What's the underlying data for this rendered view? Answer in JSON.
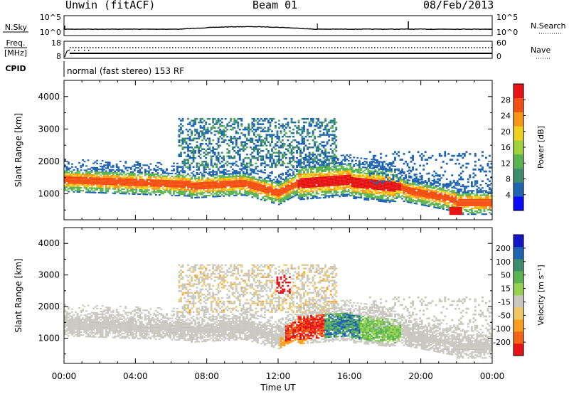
{
  "header": {
    "station": "Unwin (fitACF)",
    "beam": "Beam 01",
    "date": "08/Feb/2013"
  },
  "top_panel": {
    "left_label": "N.Sky",
    "right_label": "N.Search",
    "left_ticks": [
      "10^5",
      "10^0"
    ],
    "right_ticks": [
      "10^5",
      "10^0"
    ]
  },
  "freq_panel": {
    "left_label_1": "Freq.",
    "left_label_2": "[MHz]",
    "left_ticks": [
      "18",
      "8"
    ],
    "right_ticks": [
      "60",
      "0"
    ],
    "right_label": "Nave"
  },
  "cpid": {
    "label": "CPID",
    "text": "normal (fast stereo) 153 RF"
  },
  "chart_data": [
    {
      "type": "heatmap",
      "name": "power",
      "xlabel": "",
      "ylabel": "Slant Range [km]",
      "xlim_hours": [
        0,
        24
      ],
      "ylim_km": [
        200,
        4500
      ],
      "y_ticks": [
        "1000",
        "2000",
        "3000",
        "4000"
      ],
      "colorbar_label": "Power [dB]",
      "colorbar_ticks": [
        "28",
        "24",
        "20",
        "16",
        "12",
        "8",
        "4"
      ],
      "colorbar_range": [
        0,
        30
      ]
    },
    {
      "type": "heatmap",
      "name": "velocity",
      "xlabel": "Time UT",
      "ylabel": "Slant Range [km]",
      "xlim_hours": [
        0,
        24
      ],
      "ylim_km": [
        200,
        4500
      ],
      "x_ticks": [
        "00:00",
        "04:00",
        "08:00",
        "12:00",
        "16:00",
        "20:00",
        "00:00"
      ],
      "y_ticks": [
        "1000",
        "2000",
        "3000",
        "4000"
      ],
      "colorbar_label": "Velocity [m s⁻¹]",
      "colorbar_ticks": [
        "200",
        "100",
        "50",
        "15",
        "-15",
        "-50",
        "-100",
        "-200"
      ],
      "colorbar_range": [
        -250,
        250
      ]
    }
  ],
  "colors": {
    "power_scale": [
      "#0a0aff",
      "#1e64b4",
      "#3c8c6e",
      "#5ab450",
      "#a0d23c",
      "#f0d21e",
      "#fa9614",
      "#f55014",
      "#e61414"
    ],
    "velocity_scale": [
      "#e61414",
      "#f56414",
      "#faa01e",
      "#f0c864",
      "#c8c8c0",
      "#96d250",
      "#5ab450",
      "#3c8c6e",
      "#1e64b4",
      "#1414c8"
    ],
    "ground_scatter": "#c8c8c0"
  }
}
